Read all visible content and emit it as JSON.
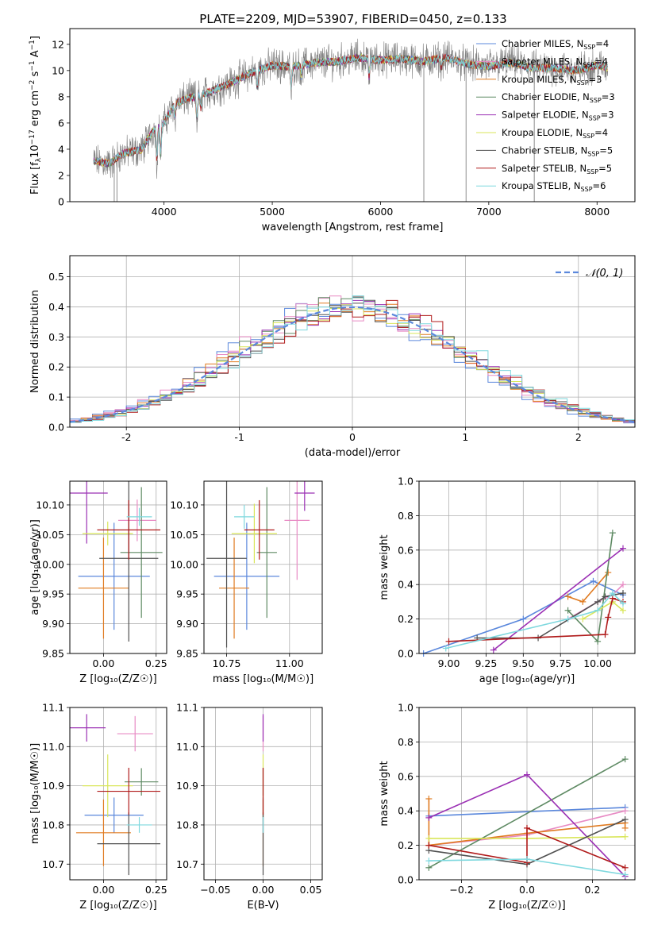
{
  "figure": {
    "title": "PLATE=2209, MJD=53907, FIBERID=0450, z=0.133"
  },
  "series_styles": [
    {
      "name": "Chabrier MILES",
      "nssp": "4",
      "color": "#5b88dc"
    },
    {
      "name": "Salpeter MILES",
      "nssp": "4",
      "color": "#e88bc4"
    },
    {
      "name": "Kroupa MILES",
      "nssp": "3",
      "color": "#e07b21"
    },
    {
      "name": "Chabrier ELODIE",
      "nssp": "3",
      "color": "#5e8a63"
    },
    {
      "name": "Salpeter ELODIE",
      "nssp": "3",
      "color": "#9b30b4"
    },
    {
      "name": "Kroupa ELODIE",
      "nssp": "4",
      "color": "#d9e65a"
    },
    {
      "name": "Chabrier STELIB",
      "nssp": "5",
      "color": "#505050"
    },
    {
      "name": "Salpeter STELIB",
      "nssp": "5",
      "color": "#b01a1a"
    },
    {
      "name": "Kroupa STELIB",
      "nssp": "6",
      "color": "#7ed8de"
    }
  ],
  "chart_data": [
    {
      "id": "spectrum",
      "type": "line",
      "title": "PLATE=2209, MJD=53907, FIBERID=0450, z=0.133",
      "xlabel": "wavelength [Angstrom, rest frame]",
      "ylabel_parts": [
        "Flux [f",
        "λ",
        "10",
        "−17",
        " erg cm",
        "−2",
        " s",
        "−1",
        " A",
        "−1",
        "]"
      ],
      "xlim": [
        3130,
        8350
      ],
      "ylim": [
        0,
        13.2
      ],
      "xticks": [
        4000,
        5000,
        6000,
        7000,
        8000
      ],
      "yticks": [
        0,
        2,
        4,
        6,
        8,
        10,
        12
      ],
      "grid": false,
      "legend_position": "top-right",
      "legend": [
        "Chabrier MILES, N_SSP=4",
        "Salpeter MILES, N_SSP=4",
        "Kroupa MILES, N_SSP=3",
        "Chabrier ELODIE, N_SSP=3",
        "Salpeter ELODIE, N_SSP=3",
        "Kroupa ELODIE, N_SSP=4",
        "Chabrier STELIB, N_SSP=5",
        "Salpeter STELIB, N_SSP=5",
        "Kroupa STELIB, N_SSP=6"
      ],
      "observed_color": "#808080",
      "continuum": {
        "x": [
          3350,
          3500,
          3600,
          3800,
          3900,
          4000,
          4100,
          4200,
          4400,
          4600,
          4800,
          5000,
          5200,
          5400,
          5600,
          5800,
          6000,
          6200,
          6400,
          6600,
          6800,
          7000,
          7200,
          7400,
          7600,
          7800,
          8000,
          8100
        ],
        "y": [
          3.1,
          2.9,
          3.6,
          4.0,
          5.5,
          6.0,
          7.5,
          7.8,
          8.3,
          9.0,
          9.8,
          10.4,
          10.3,
          10.6,
          10.7,
          11.0,
          10.8,
          10.9,
          10.7,
          11.0,
          10.5,
          10.3,
          10.6,
          10.2,
          10.2,
          10.0,
          10.4,
          10.2
        ]
      },
      "absorption_lines": [
        {
          "x": 3934,
          "depth": 2.8
        },
        {
          "x": 3969,
          "depth": 2.6
        },
        {
          "x": 4101,
          "depth": 1.2
        },
        {
          "x": 4304,
          "depth": 2.0
        },
        {
          "x": 4340,
          "depth": 1.2
        },
        {
          "x": 4861,
          "depth": 1.4
        },
        {
          "x": 5175,
          "depth": 2.0
        },
        {
          "x": 5270,
          "depth": 1.0
        },
        {
          "x": 5894,
          "depth": 1.6
        },
        {
          "x": 6563,
          "depth": 0.8
        }
      ],
      "spikes": [
        {
          "x": 3540,
          "y_low": 0.0
        },
        {
          "x": 3565,
          "y_low": 0.0
        },
        {
          "x": 6400,
          "y_low": 0.0
        },
        {
          "x": 6790,
          "y_low": 0.0
        },
        {
          "x": 7420,
          "y_low": 0.0
        }
      ]
    },
    {
      "id": "residuals",
      "type": "histogram",
      "xlabel": "(data-model)/error",
      "ylabel": "Normed distribution",
      "xlim": [
        -2.5,
        2.5
      ],
      "ylim": [
        0,
        0.57
      ],
      "xticks": [
        -2,
        -1,
        0,
        1,
        2
      ],
      "yticks": [
        0.0,
        0.1,
        0.2,
        0.3,
        0.4,
        0.5
      ],
      "grid": true,
      "legend_position": "top-right",
      "legend": [
        "𝒩(0, 1)"
      ],
      "reference_curve": {
        "label": "𝒩(0, 1)",
        "mean": 0,
        "sigma": 1,
        "color": "#5b88dc"
      },
      "bin_width": 0.1,
      "bins_from": -2.5,
      "bins_to": 2.5
    },
    {
      "id": "age_vs_Z",
      "type": "errorbar",
      "xlabel": "Z [log₁₀(Z/Z☉)]",
      "ylabel": "age  [log₁₀(age/yr)]",
      "xlim": [
        -0.16,
        0.3
      ],
      "ylim": [
        9.85,
        10.14
      ],
      "xticks": [
        0.0,
        0.25
      ],
      "xtick_labels": [
        "0.00",
        "0.25"
      ],
      "yticks": [
        9.85,
        9.9,
        9.95,
        10.0,
        10.05,
        10.1
      ],
      "ytick_labels": [
        "9.85",
        "9.90",
        "9.95",
        "10.00",
        "10.05",
        "10.10"
      ],
      "grid": true,
      "points": [
        {
          "x": 0.05,
          "y": 9.98,
          "xerr": 0.17,
          "yerr": 0.09
        },
        {
          "x": 0.16,
          "y": 10.074,
          "xerr": 0.09,
          "yerr": 0.035
        },
        {
          "x": 0.0,
          "y": 9.96,
          "xerr": 0.12,
          "yerr": 0.085
        },
        {
          "x": 0.18,
          "y": 10.02,
          "xerr": 0.1,
          "yerr": 0.11
        },
        {
          "x": -0.08,
          "y": 10.12,
          "xerr": 0.1,
          "yerr": 0.085
        },
        {
          "x": 0.02,
          "y": 10.052,
          "xerr": 0.12,
          "yerr": 0.02
        },
        {
          "x": 0.12,
          "y": 10.01,
          "xerr": 0.14,
          "yerr": 0.14
        },
        {
          "x": 0.12,
          "y": 10.058,
          "xerr": 0.15,
          "yerr": 0.05
        },
        {
          "x": 0.17,
          "y": 10.08,
          "xerr": 0.06,
          "yerr": 0.015
        }
      ]
    },
    {
      "id": "age_vs_mass",
      "type": "errorbar",
      "xlabel": "mass [log₁₀(M/M☉)]",
      "ylabel": "",
      "xlim": [
        10.66,
        11.13
      ],
      "ylim": [
        9.85,
        10.14
      ],
      "xticks": [
        10.75,
        11.0
      ],
      "xtick_labels": [
        "10.75",
        "11.00"
      ],
      "yticks": [
        9.85,
        9.9,
        9.95,
        10.0,
        10.05,
        10.1
      ],
      "ytick_labels": [
        "9.85",
        "9.90",
        "9.95",
        "10.00",
        "10.05",
        "10.10"
      ],
      "grid": true,
      "points": [
        {
          "x": 10.83,
          "y": 9.98,
          "xerr": 0.13,
          "yerr": 0.09
        },
        {
          "x": 11.03,
          "y": 10.074,
          "xerr": 0.05,
          "yerr": 0.1
        },
        {
          "x": 10.78,
          "y": 9.96,
          "xerr": 0.06,
          "yerr": 0.085
        },
        {
          "x": 10.91,
          "y": 10.02,
          "xerr": 0.04,
          "yerr": 0.11
        },
        {
          "x": 11.06,
          "y": 10.12,
          "xerr": 0.04,
          "yerr": 0.03
        },
        {
          "x": 10.86,
          "y": 10.052,
          "xerr": 0.09,
          "yerr": 0.05
        },
        {
          "x": 10.75,
          "y": 10.01,
          "xerr": 0.08,
          "yerr": 0.15
        },
        {
          "x": 10.88,
          "y": 10.058,
          "xerr": 0.06,
          "yerr": 0.05
        },
        {
          "x": 10.82,
          "y": 10.08,
          "xerr": 0.04,
          "yerr": 0.02
        }
      ]
    },
    {
      "id": "weight_vs_age",
      "type": "line",
      "xlabel": "age  [log₁₀(age/yr)]",
      "ylabel": "mass weight",
      "xlim": [
        8.8,
        10.25
      ],
      "ylim": [
        0,
        1.0
      ],
      "xticks": [
        9.0,
        9.25,
        9.5,
        9.75,
        10.0
      ],
      "xtick_labels": [
        "9.00",
        "9.25",
        "9.50",
        "9.75",
        "10.00"
      ],
      "yticks": [
        0.0,
        0.2,
        0.4,
        0.6,
        0.8,
        1.0
      ],
      "grid": true,
      "series_points": [
        {
          "x": [
            8.83,
            9.5,
            9.97,
            10.17
          ],
          "y": [
            0.0,
            0.2,
            0.42,
            0.34
          ]
        },
        {
          "x": [
            9.8,
            10.0,
            10.1,
            10.17
          ],
          "y": [
            0.2,
            0.3,
            0.34,
            0.4
          ]
        },
        {
          "x": [
            9.8,
            9.9,
            10.07
          ],
          "y": [
            0.33,
            0.3,
            0.47
          ]
        },
        {
          "x": [
            9.8,
            10.0,
            10.1
          ],
          "y": [
            0.25,
            0.07,
            0.7
          ]
        },
        {
          "x": [
            9.3,
            10.17
          ],
          "y": [
            0.02,
            0.61
          ]
        },
        {
          "x": [
            9.9,
            10.0,
            10.1,
            10.17
          ],
          "y": [
            0.2,
            0.25,
            0.3,
            0.25
          ]
        },
        {
          "x": [
            9.19,
            9.6,
            10.0,
            10.05,
            10.17
          ],
          "y": [
            0.09,
            0.09,
            0.3,
            0.33,
            0.35
          ]
        },
        {
          "x": [
            9.0,
            10.05,
            10.07,
            10.1,
            10.17
          ],
          "y": [
            0.07,
            0.11,
            0.21,
            0.32,
            0.3
          ]
        },
        {
          "x": [
            8.98,
            9.8,
            10.0,
            10.1,
            10.17
          ],
          "y": [
            0.03,
            0.2,
            0.25,
            0.35,
            0.29
          ]
        }
      ]
    },
    {
      "id": "mass_vs_Z",
      "type": "errorbar",
      "xlabel": "Z [log₁₀(Z/Z☉)]",
      "ylabel": "mass [log₁₀(M/M☉)]",
      "xlim": [
        -0.16,
        0.3
      ],
      "ylim": [
        10.66,
        11.1
      ],
      "xticks": [
        0.0,
        0.25
      ],
      "xtick_labels": [
        "0.00",
        "0.25"
      ],
      "yticks": [
        10.7,
        10.8,
        10.9,
        11.0,
        11.1
      ],
      "ytick_labels": [
        "10.7",
        "10.8",
        "10.9",
        "11.0",
        "11.1"
      ],
      "grid": true,
      "points": [
        {
          "x": 0.05,
          "y": 10.825,
          "xerr": 0.14,
          "yerr": 0.045
        },
        {
          "x": 0.15,
          "y": 11.033,
          "xerr": 0.085,
          "yerr": 0.045
        },
        {
          "x": 0.0,
          "y": 10.78,
          "xerr": 0.13,
          "yerr": 0.085
        },
        {
          "x": 0.18,
          "y": 10.91,
          "xerr": 0.08,
          "yerr": 0.035
        },
        {
          "x": -0.08,
          "y": 11.048,
          "xerr": 0.09,
          "yerr": 0.035
        },
        {
          "x": 0.02,
          "y": 10.9,
          "xerr": 0.12,
          "yerr": 0.08
        },
        {
          "x": 0.12,
          "y": 10.752,
          "xerr": 0.15,
          "yerr": 0.08
        },
        {
          "x": 0.12,
          "y": 10.886,
          "xerr": 0.15,
          "yerr": 0.06
        },
        {
          "x": 0.17,
          "y": 10.8,
          "xerr": 0.06,
          "yerr": 0.02
        }
      ]
    },
    {
      "id": "mass_vs_ebv",
      "type": "errorbar",
      "xlabel": "E(B-V)",
      "ylabel": "",
      "xlim": [
        -0.062,
        0.062
      ],
      "ylim": [
        10.66,
        11.1
      ],
      "xticks": [
        -0.05,
        0.0,
        0.05
      ],
      "xtick_labels": [
        "−0.05",
        "0.00",
        "0.05"
      ],
      "yticks": [
        10.7,
        10.8,
        10.9,
        11.0,
        11.1
      ],
      "ytick_labels": [
        "10.7",
        "10.8",
        "10.9",
        "11.0",
        "11.1"
      ],
      "grid": true,
      "points": [
        {
          "x": 0.0,
          "y": 10.825,
          "xerr": 0.0,
          "yerr": 0.045
        },
        {
          "x": 0.0,
          "y": 11.033,
          "xerr": 0.0,
          "yerr": 0.045
        },
        {
          "x": 0.0,
          "y": 10.78,
          "xerr": 0.0,
          "yerr": 0.085
        },
        {
          "x": 0.0,
          "y": 10.91,
          "xerr": 0.0,
          "yerr": 0.035
        },
        {
          "x": 0.0,
          "y": 11.048,
          "xerr": 0.0,
          "yerr": 0.035
        },
        {
          "x": 0.0,
          "y": 10.9,
          "xerr": 0.0,
          "yerr": 0.08
        },
        {
          "x": 0.0,
          "y": 10.752,
          "xerr": 0.0,
          "yerr": 0.08
        },
        {
          "x": 0.0,
          "y": 10.886,
          "xerr": 0.0,
          "yerr": 0.06
        },
        {
          "x": 0.0,
          "y": 10.8,
          "xerr": 0.0,
          "yerr": 0.02
        }
      ]
    },
    {
      "id": "weight_vs_Z",
      "type": "line",
      "xlabel": "Z [log₁₀(Z/Z☉)]",
      "ylabel": "mass weight",
      "xlim": [
        -0.33,
        0.33
      ],
      "ylim": [
        0,
        1.0
      ],
      "xticks": [
        -0.2,
        0.0,
        0.2
      ],
      "xtick_labels": [
        "−0.2",
        "0.0",
        "0.2"
      ],
      "yticks": [
        0.0,
        0.2,
        0.4,
        0.6,
        0.8,
        1.0
      ],
      "grid": true,
      "series_points": [
        {
          "x": [
            -0.3,
            0.3
          ],
          "y": [
            0.37,
            0.42
          ]
        },
        {
          "x": [
            -0.3,
            0.0,
            0.3
          ],
          "y": [
            0.2,
            0.26,
            0.4
          ]
        },
        {
          "x": [
            -0.3,
            -0.3,
            0.0,
            0.3,
            0.3
          ],
          "y": [
            0.47,
            0.2,
            0.27,
            0.33,
            0.3
          ]
        },
        {
          "x": [
            -0.3,
            0.3
          ],
          "y": [
            0.07,
            0.7
          ]
        },
        {
          "x": [
            -0.3,
            0.0,
            0.3
          ],
          "y": [
            0.36,
            0.61,
            0.02
          ]
        },
        {
          "x": [
            -0.3,
            0.0,
            0.3
          ],
          "y": [
            0.24,
            0.24,
            0.25
          ]
        },
        {
          "x": [
            -0.3,
            0.0,
            0.3
          ],
          "y": [
            0.17,
            0.09,
            0.35
          ]
        },
        {
          "x": [
            -0.3,
            0.0,
            0.0,
            0.3
          ],
          "y": [
            0.2,
            0.1,
            0.3,
            0.07
          ]
        },
        {
          "x": [
            -0.3,
            0.0,
            0.3
          ],
          "y": [
            0.11,
            0.12,
            0.03
          ]
        }
      ]
    }
  ]
}
